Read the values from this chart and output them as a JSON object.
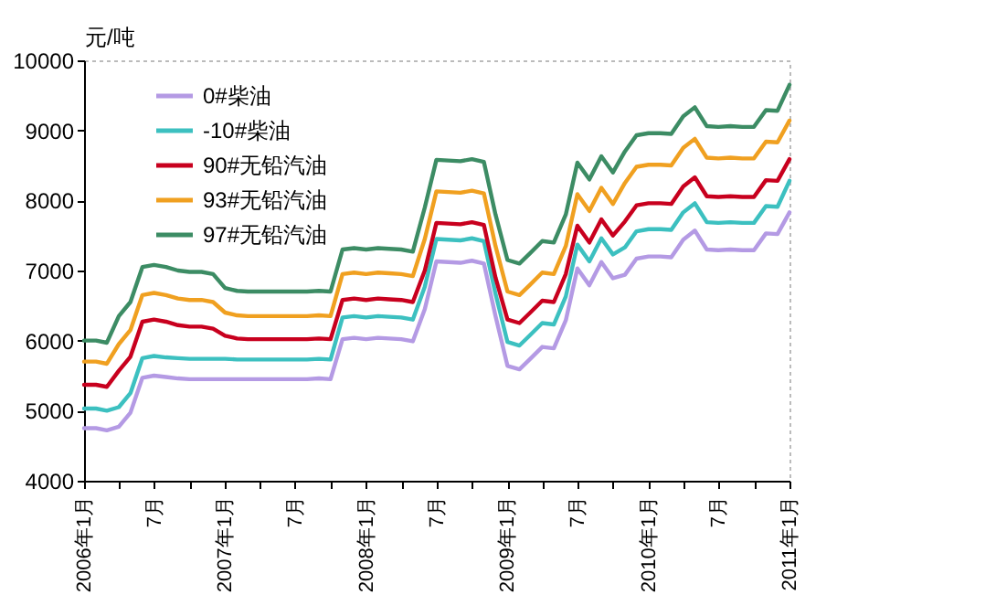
{
  "chart_data": {
    "type": "line",
    "ylabel": "元/吨",
    "x": [
      "2006-01",
      "2006-02",
      "2006-03",
      "2006-04",
      "2006-05",
      "2006-06",
      "2006-07",
      "2006-08",
      "2006-09",
      "2006-10",
      "2006-11",
      "2006-12",
      "2007-01",
      "2007-02",
      "2007-03",
      "2007-04",
      "2007-05",
      "2007-06",
      "2007-07",
      "2007-08",
      "2007-09",
      "2007-10",
      "2007-11",
      "2007-12",
      "2008-01",
      "2008-02",
      "2008-03",
      "2008-04",
      "2008-05",
      "2008-06",
      "2008-07",
      "2008-08",
      "2008-09",
      "2008-10",
      "2008-11",
      "2008-12",
      "2009-01",
      "2009-02",
      "2009-03",
      "2009-04",
      "2009-05",
      "2009-06",
      "2009-07",
      "2009-08",
      "2009-09",
      "2009-10",
      "2009-11",
      "2009-12",
      "2010-01",
      "2010-02",
      "2010-03",
      "2010-04",
      "2010-05",
      "2010-06",
      "2010-07",
      "2010-08",
      "2010-09",
      "2010-10",
      "2010-11",
      "2010-12",
      "2011-01"
    ],
    "series": [
      {
        "name": "0#柴油",
        "color": "#b49ae4",
        "values": [
          4750,
          4750,
          4720,
          4770,
          4970,
          5470,
          5500,
          5480,
          5460,
          5450,
          5450,
          5450,
          5450,
          5450,
          5450,
          5450,
          5450,
          5450,
          5450,
          5450,
          5460,
          5450,
          6020,
          6040,
          6020,
          6040,
          6030,
          6020,
          5990,
          6450,
          7130,
          7120,
          7110,
          7140,
          7100,
          6350,
          5640,
          5590,
          5740,
          5910,
          5890,
          6290,
          7030,
          6790,
          7120,
          6890,
          6940,
          7170,
          7200,
          7200,
          7190,
          7440,
          7570,
          7300,
          7290,
          7300,
          7290,
          7290,
          7530,
          7520,
          7830
        ]
      },
      {
        "name": "-10#柴油",
        "color": "#3cc0c0",
        "values": [
          5030,
          5030,
          5000,
          5050,
          5250,
          5750,
          5780,
          5760,
          5750,
          5740,
          5740,
          5740,
          5740,
          5730,
          5730,
          5730,
          5730,
          5730,
          5730,
          5730,
          5740,
          5730,
          6330,
          6350,
          6330,
          6350,
          6340,
          6330,
          6300,
          6770,
          7450,
          7440,
          7430,
          7460,
          7420,
          6670,
          5980,
          5930,
          6080,
          6250,
          6230,
          6630,
          7370,
          7130,
          7460,
          7230,
          7330,
          7560,
          7590,
          7590,
          7580,
          7830,
          7960,
          7690,
          7680,
          7690,
          7680,
          7680,
          7920,
          7910,
          8280
        ]
      },
      {
        "name": "90#无铅汽油",
        "color": "#c8001e",
        "values": [
          5370,
          5370,
          5340,
          5570,
          5770,
          6270,
          6300,
          6270,
          6220,
          6200,
          6200,
          6170,
          6070,
          6030,
          6020,
          6020,
          6020,
          6020,
          6020,
          6020,
          6030,
          6020,
          6580,
          6600,
          6580,
          6600,
          6590,
          6580,
          6550,
          7000,
          7680,
          7670,
          7660,
          7690,
          7650,
          6900,
          6300,
          6250,
          6400,
          6570,
          6550,
          6950,
          7640,
          7400,
          7730,
          7500,
          7700,
          7930,
          7960,
          7960,
          7950,
          8200,
          8330,
          8060,
          8050,
          8060,
          8050,
          8050,
          8290,
          8280,
          8590
        ]
      },
      {
        "name": "93#无铅汽油",
        "color": "#f0a020",
        "values": [
          5700,
          5700,
          5670,
          5950,
          6150,
          6650,
          6680,
          6650,
          6600,
          6580,
          6580,
          6550,
          6400,
          6360,
          6350,
          6350,
          6350,
          6350,
          6350,
          6350,
          6360,
          6350,
          6950,
          6970,
          6950,
          6970,
          6960,
          6950,
          6920,
          7450,
          8130,
          8120,
          8110,
          8140,
          8100,
          7350,
          6700,
          6650,
          6800,
          6970,
          6950,
          7350,
          8090,
          7850,
          8180,
          7950,
          8250,
          8480,
          8510,
          8510,
          8500,
          8750,
          8880,
          8610,
          8600,
          8610,
          8600,
          8600,
          8840,
          8830,
          9140
        ]
      },
      {
        "name": "97#无铅汽油",
        "color": "#3c8c64",
        "values": [
          6000,
          6000,
          5970,
          6350,
          6550,
          7050,
          7080,
          7050,
          7000,
          6980,
          6980,
          6950,
          6750,
          6710,
          6700,
          6700,
          6700,
          6700,
          6700,
          6700,
          6710,
          6700,
          7300,
          7320,
          7300,
          7320,
          7310,
          7300,
          7270,
          7900,
          8580,
          8570,
          8560,
          8590,
          8550,
          7800,
          7150,
          7100,
          7250,
          7420,
          7400,
          7800,
          8540,
          8300,
          8630,
          8400,
          8700,
          8930,
          8960,
          8960,
          8950,
          9200,
          9330,
          9060,
          9050,
          9060,
          9050,
          9050,
          9290,
          9280,
          9650
        ]
      }
    ],
    "xlim": [
      "2006-01",
      "2011-01"
    ],
    "xticks": [
      {
        "value": "2006-01",
        "label": "2006年1月"
      },
      {
        "value": "2006-04",
        "label": null
      },
      {
        "value": "2006-07",
        "label": "7月"
      },
      {
        "value": "2006-10",
        "label": null
      },
      {
        "value": "2007-01",
        "label": "2007年1月"
      },
      {
        "value": "2007-04",
        "label": null
      },
      {
        "value": "2007-07",
        "label": "7月"
      },
      {
        "value": "2007-10",
        "label": null
      },
      {
        "value": "2008-01",
        "label": "2008年1月"
      },
      {
        "value": "2008-04",
        "label": null
      },
      {
        "value": "2008-07",
        "label": "7月"
      },
      {
        "value": "2008-10",
        "label": null
      },
      {
        "value": "2009-01",
        "label": "2009年1月"
      },
      {
        "value": "2009-04",
        "label": null
      },
      {
        "value": "2009-07",
        "label": "7月"
      },
      {
        "value": "2009-10",
        "label": null
      },
      {
        "value": "2010-01",
        "label": "2010年1月"
      },
      {
        "value": "2010-04",
        "label": null
      },
      {
        "value": "2010-07",
        "label": "7月"
      },
      {
        "value": "2010-10",
        "label": null
      },
      {
        "value": "2011-01",
        "label": "2011年1月"
      }
    ],
    "ylim": [
      4000,
      10000
    ],
    "yticks": [
      4000,
      5000,
      6000,
      7000,
      8000,
      9000,
      10000
    ],
    "grid": false,
    "legend": "top left",
    "line_style": "solid"
  }
}
